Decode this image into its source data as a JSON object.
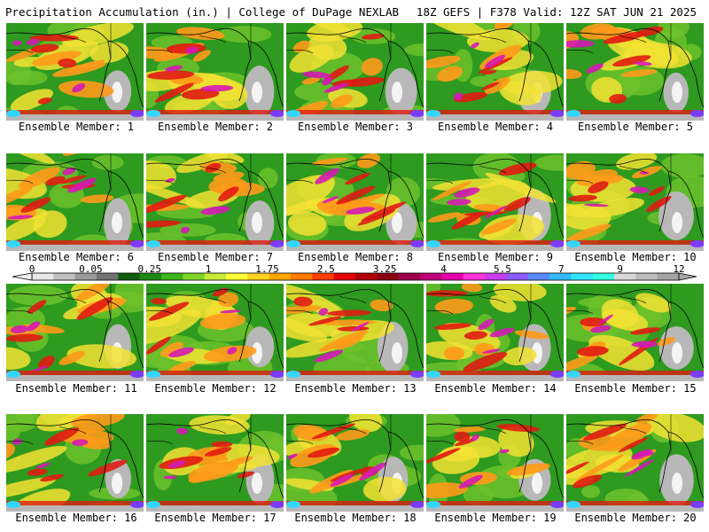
{
  "header": {
    "left_title": "Precipitation Accumulation (in.) | College of DuPage NEXLAB",
    "right_title": "18Z GEFS | F378 Valid: 12Z SAT JUN 21 2025"
  },
  "colorbar": {
    "labels": [
      "0",
      "0.05",
      "0.25",
      "1",
      "1.75",
      "2.5",
      "3.25",
      "4",
      "5.5",
      "7",
      "9",
      "12"
    ],
    "colors": [
      "#e8e8e8",
      "#c0c0c0",
      "#9a9a9a",
      "#737373",
      "#0f5d0f",
      "#1f8a12",
      "#3fb51c",
      "#7fd42a",
      "#c8ea3a",
      "#ffff33",
      "#ffd21f",
      "#ffa600",
      "#ff7a00",
      "#ff3d00",
      "#e60000",
      "#b30000",
      "#8a0010",
      "#a0004a",
      "#c0007a",
      "#e600a8",
      "#ff33d6",
      "#c83cf0",
      "#8a5cff",
      "#5a8cff",
      "#33bbff",
      "#33e6ff",
      "#33ffe0",
      "#d8d8d8",
      "#bdbdbd",
      "#a5a5a5"
    ]
  },
  "members": [
    "Ensemble Member: 1",
    "Ensemble Member: 2",
    "Ensemble Member: 3",
    "Ensemble Member: 4",
    "Ensemble Member: 5",
    "Ensemble Member: 6",
    "Ensemble Member: 7",
    "Ensemble Member: 8",
    "Ensemble Member: 9",
    "Ensemble Member: 10",
    "Ensemble Member: 11",
    "Ensemble Member: 12",
    "Ensemble Member: 13",
    "Ensemble Member: 14",
    "Ensemble Member: 15",
    "Ensemble Member: 16",
    "Ensemble Member: 17",
    "Ensemble Member: 18",
    "Ensemble Member: 19",
    "Ensemble Member: 20"
  ],
  "palette": {
    "green": "#2e9a1f",
    "light_green": "#6fc32b",
    "yellow": "#f2e233",
    "orange": "#ff9a1a",
    "red": "#e01c12",
    "magenta": "#d61ab4",
    "purple": "#7a3cff",
    "cyan": "#33d6ff",
    "gray": "#b8b8b8",
    "white": "#f4f4f4",
    "coast": "#000000"
  }
}
